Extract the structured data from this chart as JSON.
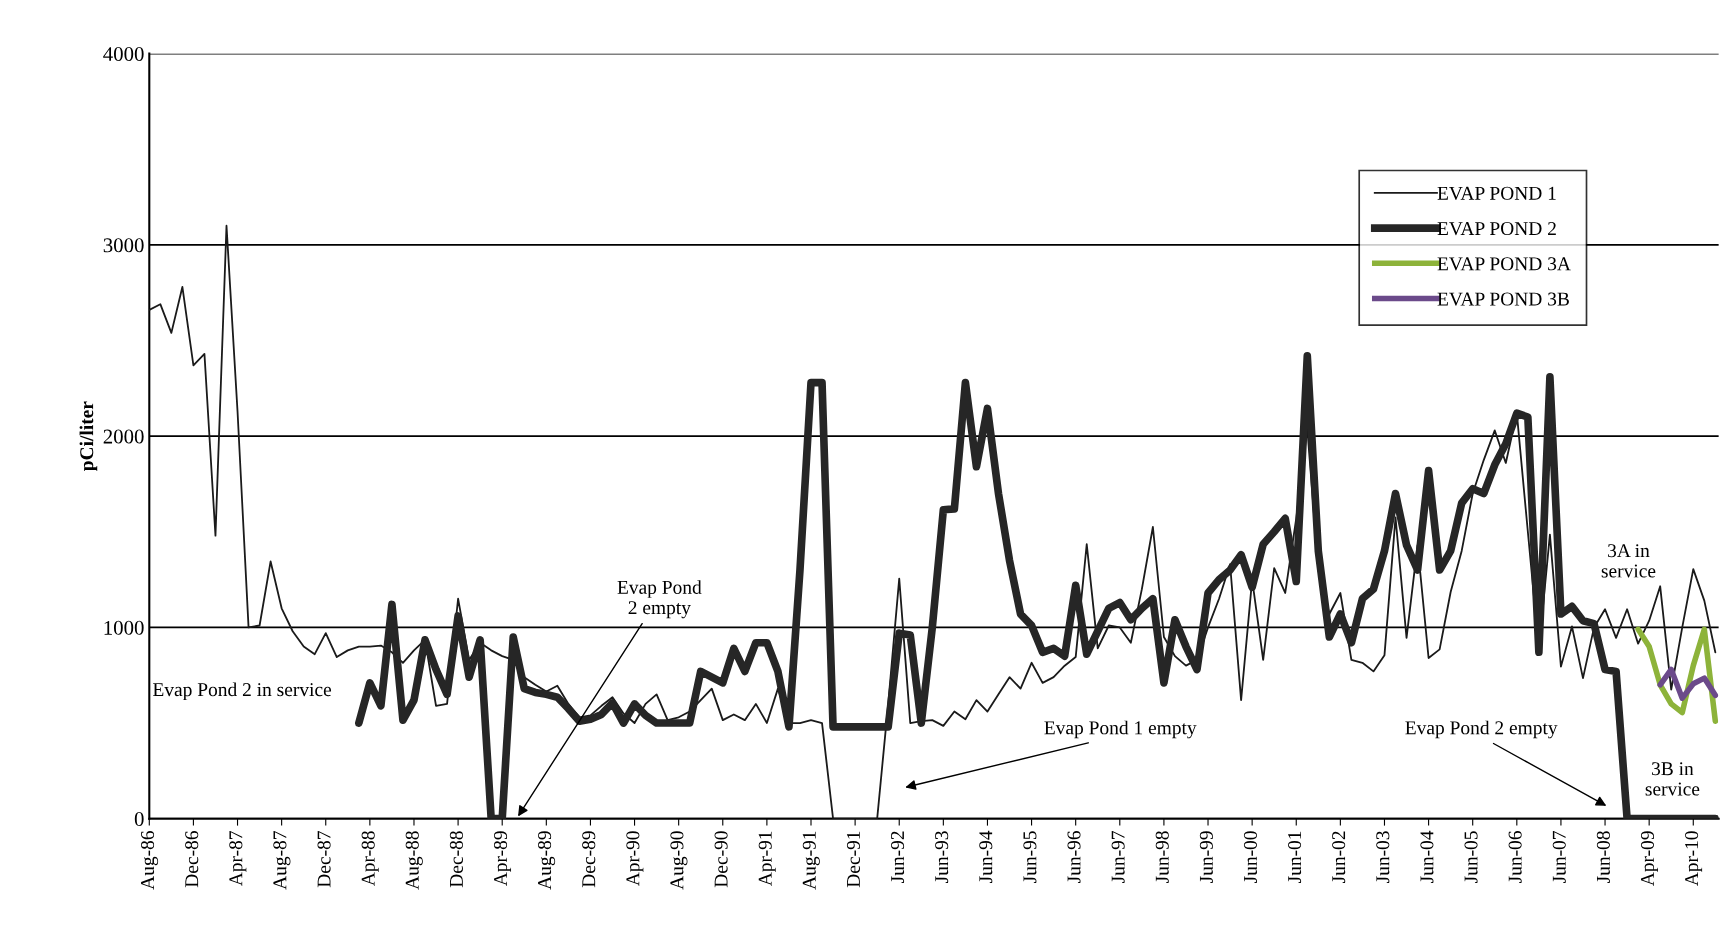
{
  "chart_data": {
    "type": "line",
    "ylabel": "pCi/liter",
    "categories": [
      "Aug-86",
      null,
      null,
      null,
      "Dec-86",
      null,
      null,
      null,
      "Apr-87",
      null,
      null,
      null,
      "Aug-87",
      null,
      null,
      null,
      "Dec-87",
      null,
      null,
      null,
      "Apr-88",
      null,
      null,
      null,
      "Aug-88",
      null,
      null,
      null,
      "Dec-88",
      null,
      null,
      null,
      "Apr-89",
      null,
      null,
      null,
      "Aug-89",
      null,
      null,
      null,
      "Dec-89",
      null,
      null,
      null,
      "Apr-90",
      null,
      null,
      null,
      "Aug-90",
      null,
      null,
      null,
      "Dec-90",
      null,
      null,
      null,
      "Apr-91",
      null,
      null,
      null,
      "Aug-91",
      null,
      null,
      null,
      "Dec-91",
      null,
      null,
      null,
      "Jun-92",
      null,
      null,
      null,
      "Jun-93",
      null,
      null,
      null,
      "Jun-94",
      null,
      null,
      null,
      "Jun-95",
      null,
      null,
      null,
      "Jun-96",
      null,
      null,
      null,
      "Jun-97",
      null,
      null,
      null,
      "Jun-98",
      null,
      null,
      null,
      "Jun-99",
      null,
      null,
      null,
      "Jun-00",
      null,
      null,
      null,
      "Jun-01",
      null,
      null,
      null,
      "Jun-02",
      null,
      null,
      null,
      "Jun-03",
      null,
      null,
      null,
      "Jun-04",
      null,
      null,
      null,
      "Jun-05",
      null,
      null,
      null,
      "Jun-06",
      null,
      null,
      null,
      "Jun-07",
      null,
      null,
      null,
      "Jun-08",
      null,
      null,
      null,
      "Apr-09",
      null,
      null,
      null,
      "Apr-10",
      null,
      null
    ],
    "series": [
      {
        "name": "EVAP POND 1",
        "color": "#1a1a1a",
        "values": [
          2660,
          2690,
          2540,
          2780,
          2370,
          2430,
          1480,
          3100,
          2130,
          1000,
          1010,
          1345,
          1100,
          980,
          900,
          860,
          970,
          845,
          880,
          900,
          900,
          905,
          870,
          815,
          880,
          935,
          590,
          600,
          1150,
          830,
          920,
          880,
          850,
          830,
          740,
          700,
          665,
          695,
          600,
          530,
          540,
          590,
          635,
          550,
          500,
          600,
          650,
          515,
          530,
          560,
          620,
          680,
          515,
          545,
          515,
          600,
          500,
          680,
          500,
          500,
          515,
          500,
          0,
          0,
          0,
          0,
          0,
          600,
          1255,
          500,
          510,
          515,
          485,
          560,
          520,
          620,
          560,
          650,
          740,
          680,
          815,
          710,
          740,
          800,
          845,
          1435,
          890,
          1010,
          1000,
          920,
          1200,
          1525,
          950,
          850,
          800,
          830,
          1000,
          1150,
          1330,
          620,
          1250,
          830,
          1310,
          1180,
          1570,
          2040,
          1300,
          1070,
          1180,
          830,
          815,
          770,
          855,
          1575,
          945,
          1430,
          840,
          885,
          1185,
          1400,
          1700,
          1875,
          2030,
          1860,
          2120,
          1500,
          885,
          1485,
          795,
          1005,
          735,
          1000,
          1095,
          945,
          1095,
          915,
          1035,
          1215,
          675,
          1000,
          1305,
          1140,
          870
        ]
      },
      {
        "name": "EVAP POND 2",
        "color": "#262626",
        "values": [
          null,
          null,
          null,
          null,
          null,
          null,
          null,
          null,
          null,
          null,
          null,
          null,
          null,
          null,
          null,
          null,
          null,
          null,
          null,
          500,
          710,
          590,
          1120,
          515,
          620,
          935,
          780,
          650,
          1060,
          740,
          935,
          0,
          0,
          950,
          680,
          660,
          650,
          635,
          575,
          510,
          520,
          545,
          605,
          500,
          600,
          540,
          500,
          500,
          500,
          500,
          770,
          740,
          710,
          890,
          770,
          920,
          920,
          770,
          480,
          1300,
          2280,
          2280,
          480,
          480,
          480,
          480,
          480,
          480,
          970,
          960,
          500,
          1000,
          1615,
          1620,
          2280,
          1840,
          2145,
          1700,
          1350,
          1070,
          1010,
          870,
          890,
          850,
          1220,
          860,
          980,
          1100,
          1130,
          1040,
          1100,
          1150,
          710,
          1040,
          900,
          780,
          1180,
          1250,
          1300,
          1380,
          1210,
          1435,
          1500,
          1570,
          1240,
          2420,
          1400,
          950,
          1070,
          920,
          1150,
          1200,
          1400,
          1700,
          1430,
          1300,
          1820,
          1300,
          1400,
          1650,
          1725,
          1700,
          1850,
          1960,
          2120,
          2100,
          870,
          2310,
          1070,
          1110,
          1035,
          1020,
          780,
          770,
          0,
          0,
          0,
          0,
          0,
          0,
          0,
          0,
          0
        ]
      },
      {
        "name": "EVAP POND 3A",
        "color": "#8db33a",
        "values": [
          null,
          null,
          null,
          null,
          null,
          null,
          null,
          null,
          null,
          null,
          null,
          null,
          null,
          null,
          null,
          null,
          null,
          null,
          null,
          null,
          null,
          null,
          null,
          null,
          null,
          null,
          null,
          null,
          null,
          null,
          null,
          null,
          null,
          null,
          null,
          null,
          null,
          null,
          null,
          null,
          null,
          null,
          null,
          null,
          null,
          null,
          null,
          null,
          null,
          null,
          null,
          null,
          null,
          null,
          null,
          null,
          null,
          null,
          null,
          null,
          null,
          null,
          null,
          null,
          null,
          null,
          null,
          null,
          null,
          null,
          null,
          null,
          null,
          null,
          null,
          null,
          null,
          null,
          null,
          null,
          null,
          null,
          null,
          null,
          null,
          null,
          null,
          null,
          null,
          null,
          null,
          null,
          null,
          null,
          null,
          null,
          null,
          null,
          null,
          null,
          null,
          null,
          null,
          null,
          null,
          null,
          null,
          null,
          null,
          null,
          null,
          null,
          null,
          null,
          null,
          null,
          null,
          null,
          null,
          null,
          null,
          null,
          null,
          null,
          null,
          null,
          null,
          null,
          null,
          null,
          null,
          null,
          null,
          null,
          null,
          990,
          900,
          700,
          600,
          555,
          800,
          990,
          510
        ]
      },
      {
        "name": "EVAP POND 3B",
        "color": "#6b4a8a",
        "values": [
          null,
          null,
          null,
          null,
          null,
          null,
          null,
          null,
          null,
          null,
          null,
          null,
          null,
          null,
          null,
          null,
          null,
          null,
          null,
          null,
          null,
          null,
          null,
          null,
          null,
          null,
          null,
          null,
          null,
          null,
          null,
          null,
          null,
          null,
          null,
          null,
          null,
          null,
          null,
          null,
          null,
          null,
          null,
          null,
          null,
          null,
          null,
          null,
          null,
          null,
          null,
          null,
          null,
          null,
          null,
          null,
          null,
          null,
          null,
          null,
          null,
          null,
          null,
          null,
          null,
          null,
          null,
          null,
          null,
          null,
          null,
          null,
          null,
          null,
          null,
          null,
          null,
          null,
          null,
          null,
          null,
          null,
          null,
          null,
          null,
          null,
          null,
          null,
          null,
          null,
          null,
          null,
          null,
          null,
          null,
          null,
          null,
          null,
          null,
          null,
          null,
          null,
          null,
          null,
          null,
          null,
          null,
          null,
          null,
          null,
          null,
          null,
          null,
          null,
          null,
          null,
          null,
          null,
          null,
          null,
          null,
          null,
          null,
          null,
          null,
          null,
          null,
          null,
          null,
          null,
          null,
          null,
          null,
          null,
          null,
          null,
          null,
          700,
          780,
          630,
          705,
          735,
          645
        ]
      }
    ],
    "ylim": [
      0,
      4000
    ],
    "yticks": [
      0,
      1000,
      2000,
      3000,
      4000
    ],
    "grid": "y",
    "legend": "top right",
    "marker": "none",
    "line_style": "solid",
    "annotations": [
      "Evap Pond 2 in service",
      "Evap Pond\n2 empty",
      "Evap Pond 1 empty",
      "Evap Pond 2 empty",
      "3A in\nservice",
      "3B in\nservice"
    ]
  }
}
